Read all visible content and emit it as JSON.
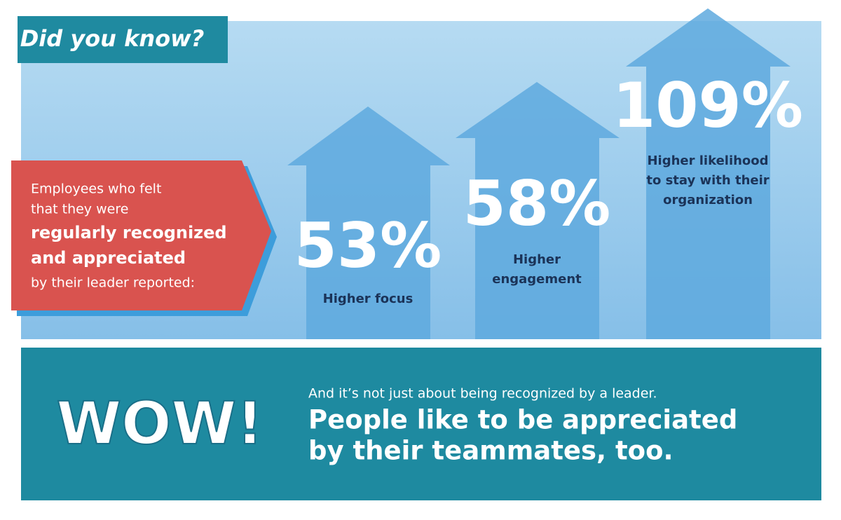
{
  "header": {
    "title": "Did you know?"
  },
  "intro": {
    "lines": [
      "Employees who felt",
      "that they were",
      "regularly recognized",
      "and appreciated",
      "by their leader reported:"
    ]
  },
  "stats": [
    {
      "value": "53%",
      "caption": [
        "Higher focus"
      ]
    },
    {
      "value": "58%",
      "caption": [
        "Higher",
        "engagement"
      ]
    },
    {
      "value": "109%",
      "caption": [
        "Higher likelihood",
        "to stay with their",
        "organization"
      ]
    }
  ],
  "footer": {
    "exclaim": "WOW!",
    "note": "And it’s not just about being recognized by a leader.",
    "headline": [
      "People like to be appreciated",
      "by their teammates, too."
    ]
  }
}
